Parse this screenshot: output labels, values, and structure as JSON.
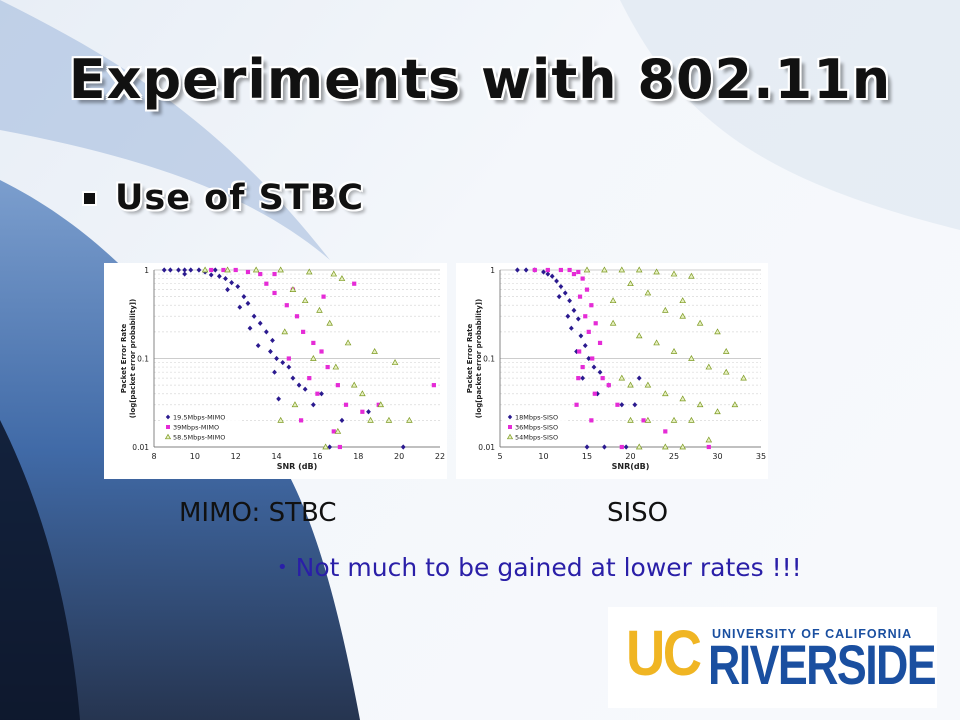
{
  "slide": {
    "title": "Experiments with 802.11n",
    "bullet": "Use of STBC",
    "caption_left": "MIMO: STBC",
    "caption_right": "SISO",
    "note": "Not much to be gained at lower rates !!!"
  },
  "logo": {
    "uc": "UC",
    "top_text": "UNIVERSITY OF CALIFORNIA",
    "main_text": "RIVERSIDE",
    "colors": {
      "uc": "#f0b523",
      "blue": "#1a4fa0"
    }
  },
  "chart_data": [
    {
      "type": "scatter",
      "xlabel": "SNR (dB)",
      "ylabel": "Packet Error Rate (log[packet error probability])",
      "y_scale": "log",
      "xlim": [
        8,
        22
      ],
      "ylim": [
        0.01,
        1
      ],
      "x_ticks": [
        "8",
        "10",
        "12",
        "14",
        "16",
        "18",
        "20",
        "22"
      ],
      "y_ticks": [
        "1",
        "0.1",
        "0.01"
      ],
      "legend_position": "bottom-left",
      "grid": true,
      "series": [
        {
          "name": "19.5Mbps-MIMO",
          "marker": "diamond",
          "color": "#2b1a8f",
          "points": [
            [
              8.5,
              1
            ],
            [
              8.8,
              1
            ],
            [
              9.2,
              1
            ],
            [
              9.5,
              1
            ],
            [
              9.8,
              1
            ],
            [
              10.2,
              1
            ],
            [
              10.5,
              0.95
            ],
            [
              9.5,
              0.9
            ],
            [
              10.8,
              0.88
            ],
            [
              11.2,
              0.85
            ],
            [
              11.0,
              1
            ],
            [
              11.5,
              0.8
            ],
            [
              11.8,
              0.72
            ],
            [
              12.1,
              0.65
            ],
            [
              11.6,
              0.6
            ],
            [
              12.4,
              0.5
            ],
            [
              12.6,
              0.42
            ],
            [
              12.2,
              0.38
            ],
            [
              12.9,
              0.3
            ],
            [
              13.2,
              0.25
            ],
            [
              12.7,
              0.22
            ],
            [
              13.5,
              0.2
            ],
            [
              13.8,
              0.16
            ],
            [
              13.1,
              0.14
            ],
            [
              13.7,
              0.12
            ],
            [
              14.0,
              0.1
            ],
            [
              14.3,
              0.09
            ],
            [
              14.6,
              0.08
            ],
            [
              13.9,
              0.07
            ],
            [
              14.8,
              0.06
            ],
            [
              15.1,
              0.05
            ],
            [
              15.4,
              0.045
            ],
            [
              16.2,
              0.04
            ],
            [
              14.1,
              0.035
            ],
            [
              15.8,
              0.03
            ],
            [
              17.2,
              0.02
            ],
            [
              18.5,
              0.025
            ],
            [
              16.6,
              0.01
            ],
            [
              20.2,
              0.01
            ]
          ]
        },
        {
          "name": "39Mbps-MIMO",
          "marker": "square",
          "color": "#e52bd6",
          "points": [
            [
              10.8,
              1
            ],
            [
              11.4,
              1
            ],
            [
              12.0,
              1
            ],
            [
              12.6,
              0.95
            ],
            [
              13.2,
              0.9
            ],
            [
              13.5,
              0.7
            ],
            [
              13.9,
              0.55
            ],
            [
              14.5,
              0.4
            ],
            [
              15.0,
              0.3
            ],
            [
              15.3,
              0.2
            ],
            [
              15.8,
              0.15
            ],
            [
              16.2,
              0.12
            ],
            [
              14.6,
              0.1
            ],
            [
              16.5,
              0.08
            ],
            [
              15.6,
              0.06
            ],
            [
              17.0,
              0.05
            ],
            [
              16.0,
              0.04
            ],
            [
              17.4,
              0.03
            ],
            [
              18.2,
              0.025
            ],
            [
              15.2,
              0.02
            ],
            [
              16.8,
              0.015
            ],
            [
              17.1,
              0.01
            ],
            [
              19.0,
              0.03
            ],
            [
              21.7,
              0.05
            ],
            [
              13.9,
              0.9
            ],
            [
              14.8,
              0.6
            ],
            [
              17.8,
              0.7
            ],
            [
              16.3,
              0.5
            ]
          ]
        },
        {
          "name": "58.5Mbps-MIMO",
          "marker": "triangle",
          "color": "#a4c33a",
          "points": [
            [
              10.5,
              1
            ],
            [
              11.6,
              1
            ],
            [
              13.0,
              1
            ],
            [
              14.2,
              1
            ],
            [
              15.6,
              0.95
            ],
            [
              16.8,
              0.9
            ],
            [
              17.2,
              0.8
            ],
            [
              14.8,
              0.6
            ],
            [
              15.4,
              0.45
            ],
            [
              16.1,
              0.35
            ],
            [
              16.6,
              0.25
            ],
            [
              14.4,
              0.2
            ],
            [
              17.5,
              0.15
            ],
            [
              18.8,
              0.12
            ],
            [
              15.8,
              0.1
            ],
            [
              16.9,
              0.08
            ],
            [
              17.8,
              0.05
            ],
            [
              18.2,
              0.04
            ],
            [
              19.1,
              0.03
            ],
            [
              14.9,
              0.03
            ],
            [
              18.6,
              0.02
            ],
            [
              19.5,
              0.02
            ],
            [
              14.2,
              0.02
            ],
            [
              16.4,
              0.01
            ],
            [
              20.5,
              0.02
            ],
            [
              19.8,
              0.09
            ],
            [
              17.0,
              0.015
            ]
          ]
        }
      ]
    },
    {
      "type": "scatter",
      "xlabel": "SNR(dB)",
      "ylabel": "Packet Error Rate (log[packet error probability])",
      "y_scale": "log",
      "xlim": [
        5,
        35
      ],
      "ylim": [
        0.01,
        1
      ],
      "x_ticks": [
        "5",
        "10",
        "15",
        "20",
        "25",
        "30",
        "35"
      ],
      "y_ticks": [
        "1",
        "0.1",
        "0.01"
      ],
      "legend_position": "bottom-left",
      "grid": true,
      "series": [
        {
          "name": "18Mbps-SISO",
          "marker": "diamond",
          "color": "#2b1a8f",
          "points": [
            [
              7,
              1
            ],
            [
              8,
              1
            ],
            [
              9,
              1
            ],
            [
              10,
              0.95
            ],
            [
              10.5,
              0.9
            ],
            [
              11,
              0.85
            ],
            [
              11.5,
              0.75
            ],
            [
              12,
              0.65
            ],
            [
              12.5,
              0.55
            ],
            [
              11.8,
              0.5
            ],
            [
              13,
              0.45
            ],
            [
              13.5,
              0.35
            ],
            [
              12.8,
              0.3
            ],
            [
              14,
              0.28
            ],
            [
              13.2,
              0.22
            ],
            [
              14.3,
              0.18
            ],
            [
              14.8,
              0.14
            ],
            [
              13.8,
              0.12
            ],
            [
              15.2,
              0.1
            ],
            [
              15.8,
              0.08
            ],
            [
              16.5,
              0.07
            ],
            [
              14.5,
              0.06
            ],
            [
              17.5,
              0.05
            ],
            [
              16.2,
              0.04
            ],
            [
              19,
              0.03
            ],
            [
              20.5,
              0.03
            ],
            [
              15,
              0.01
            ],
            [
              17,
              0.01
            ],
            [
              19.5,
              0.01
            ],
            [
              21,
              0.06
            ]
          ]
        },
        {
          "name": "36Mbps-SISO",
          "marker": "square",
          "color": "#e52bd6",
          "points": [
            [
              9,
              1
            ],
            [
              10.5,
              1
            ],
            [
              12,
              1
            ],
            [
              13,
              1
            ],
            [
              14,
              0.95
            ],
            [
              13.5,
              0.9
            ],
            [
              14.5,
              0.8
            ],
            [
              15,
              0.6
            ],
            [
              14.2,
              0.5
            ],
            [
              15.5,
              0.4
            ],
            [
              14.8,
              0.3
            ],
            [
              16,
              0.25
            ],
            [
              15.2,
              0.2
            ],
            [
              16.5,
              0.15
            ],
            [
              14.1,
              0.12
            ],
            [
              15.6,
              0.1
            ],
            [
              14.5,
              0.08
            ],
            [
              16.8,
              0.06
            ],
            [
              17.5,
              0.05
            ],
            [
              15.9,
              0.04
            ],
            [
              18.5,
              0.03
            ],
            [
              15.5,
              0.02
            ],
            [
              19,
              0.01
            ],
            [
              21.5,
              0.02
            ],
            [
              24,
              0.015
            ],
            [
              29,
              0.01
            ],
            [
              14,
              0.06
            ],
            [
              13.8,
              0.03
            ]
          ]
        },
        {
          "name": "54Mbps-SISO",
          "marker": "triangle",
          "color": "#a4c33a",
          "points": [
            [
              15,
              1
            ],
            [
              17,
              1
            ],
            [
              19,
              1
            ],
            [
              21,
              1
            ],
            [
              23,
              0.95
            ],
            [
              25,
              0.9
            ],
            [
              27,
              0.85
            ],
            [
              20,
              0.7
            ],
            [
              22,
              0.55
            ],
            [
              18,
              0.45
            ],
            [
              24,
              0.35
            ],
            [
              26,
              0.3
            ],
            [
              28,
              0.25
            ],
            [
              30,
              0.2
            ],
            [
              21,
              0.18
            ],
            [
              23,
              0.15
            ],
            [
              25,
              0.12
            ],
            [
              27,
              0.1
            ],
            [
              29,
              0.08
            ],
            [
              31,
              0.07
            ],
            [
              33,
              0.06
            ],
            [
              19,
              0.06
            ],
            [
              20,
              0.05
            ],
            [
              22,
              0.05
            ],
            [
              24,
              0.04
            ],
            [
              26,
              0.035
            ],
            [
              28,
              0.03
            ],
            [
              30,
              0.025
            ],
            [
              32,
              0.03
            ],
            [
              20,
              0.02
            ],
            [
              22,
              0.02
            ],
            [
              25,
              0.02
            ],
            [
              27,
              0.02
            ],
            [
              21,
              0.01
            ],
            [
              24,
              0.01
            ],
            [
              26,
              0.01
            ],
            [
              29,
              0.012
            ],
            [
              18,
              0.25
            ],
            [
              26,
              0.45
            ],
            [
              31,
              0.12
            ]
          ]
        }
      ]
    }
  ]
}
